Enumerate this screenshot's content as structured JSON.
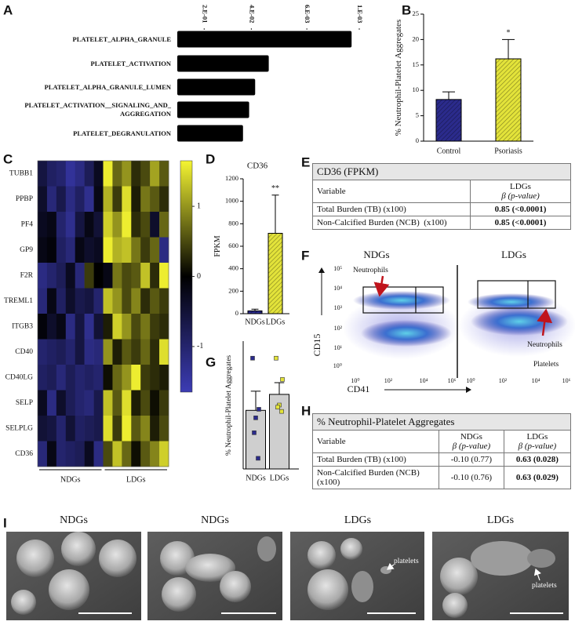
{
  "panel_labels": [
    "A",
    "B",
    "C",
    "D",
    "E",
    "F",
    "G",
    "H",
    "I"
  ],
  "chart_data": [
    {
      "type": "hbar",
      "categories": [
        "PLATELET_ALPHA_GRANULE",
        "PLATELET_ACTIVATION",
        "PLATELET_ALPHA_GRANULE_LUMEN",
        "PLATELET_ACTIVATION__SIGNALING_AND_ AGGREGATION",
        "PLATELET_DEGRANULATION"
      ],
      "values": [
        0.0013,
        0.022,
        0.035,
        0.043,
        0.053
      ],
      "color": "#000000",
      "xscale": "log",
      "xlim": [
        0.5,
        0.001
      ],
      "xticks": [
        {
          "value": 0.2,
          "label": "2.E-01"
        },
        {
          "value": 0.04,
          "label": "4.E-02"
        },
        {
          "value": 0.006,
          "label": "6.E-03"
        },
        {
          "value": 0.001,
          "label": "1.E-03"
        }
      ]
    },
    {
      "type": "bar",
      "ylabel": "% Neutrophil-Platelet Aggregates",
      "categories": [
        "Control",
        "Psoriasis"
      ],
      "values": [
        8.2,
        16.2
      ],
      "errors": [
        1.5,
        3.8
      ],
      "colors": [
        "#2b2b8c",
        "#e3e33a"
      ],
      "hatch": true,
      "ylim": [
        0,
        25
      ],
      "yticks": [
        0,
        5,
        10,
        15,
        20,
        25
      ],
      "annotation": "*"
    },
    {
      "type": "heatmap",
      "rows": [
        "TUBB1",
        "PPBP",
        "PF4",
        "GP9",
        "F2R",
        "TREML1",
        "ITGB3",
        "CD40",
        "CD40LG",
        "SELP",
        "SELPLG",
        "CD36"
      ],
      "groups": [
        "NDGs",
        "LDGs"
      ],
      "values": [
        [
          -0.6,
          -0.9,
          -1.0,
          -1.4,
          -1.2,
          -0.8,
          -0.3,
          1.6,
          0.7,
          1.0,
          0.3,
          0.5,
          1.1,
          0.6
        ],
        [
          -0.4,
          -1.1,
          -0.7,
          -1.2,
          -0.9,
          -1.3,
          -0.2,
          1.2,
          0.4,
          1.5,
          0.2,
          0.8,
          0.6,
          0.3
        ],
        [
          -0.3,
          -0.2,
          -1.0,
          -1.3,
          -0.6,
          -0.2,
          -0.5,
          1.4,
          1.0,
          1.6,
          0.3,
          0.5,
          -0.4,
          0.7
        ],
        [
          -0.2,
          -0.1,
          -0.9,
          -1.1,
          -0.2,
          -0.4,
          -0.3,
          1.6,
          1.2,
          1.3,
          0.8,
          0.4,
          0.7,
          -1.2
        ],
        [
          -1.2,
          -1.0,
          -0.8,
          -0.3,
          -1.1,
          0.4,
          0.0,
          -0.2,
          0.8,
          0.5,
          0.6,
          1.3,
          0.3,
          1.6
        ],
        [
          -1.1,
          -0.2,
          -0.9,
          -0.4,
          -0.7,
          -0.6,
          -1.0,
          1.3,
          1.0,
          0.5,
          0.9,
          0.3,
          0.6,
          0.4
        ],
        [
          -0.1,
          -0.4,
          -0.2,
          -1.2,
          -0.6,
          -1.3,
          -0.5,
          0.2,
          1.4,
          1.0,
          0.5,
          0.8,
          0.4,
          0.3
        ],
        [
          -1.0,
          -0.9,
          -0.8,
          -1.0,
          -0.6,
          -1.2,
          -1.1,
          1.0,
          0.2,
          0.6,
          0.4,
          0.7,
          0.3,
          1.5
        ],
        [
          -0.9,
          -0.8,
          -1.1,
          -0.8,
          -1.0,
          -0.9,
          -1.0,
          0.1,
          0.7,
          1.0,
          1.6,
          0.4,
          0.3,
          0.2
        ],
        [
          -0.3,
          -1.2,
          -0.4,
          -0.8,
          -1.0,
          -1.1,
          -0.7,
          1.3,
          0.6,
          1.5,
          0.2,
          0.5,
          0.1,
          0.4
        ],
        [
          -0.5,
          -0.6,
          -1.0,
          -0.5,
          -0.9,
          -0.8,
          -0.7,
          1.5,
          0.4,
          1.6,
          0.6,
          0.9,
          0.2,
          0.5
        ],
        [
          -1.1,
          -0.2,
          -1.0,
          -0.9,
          -0.8,
          -0.3,
          -1.2,
          0.5,
          1.3,
          0.7,
          0.1,
          0.6,
          0.9,
          1.4
        ]
      ],
      "zlim": [
        -1.65,
        1.65
      ],
      "colorbar_ticks": [
        1,
        0,
        -1
      ]
    },
    {
      "type": "bar",
      "title": "CD36",
      "ylabel": "FPKM",
      "categories": [
        "NDGs",
        "LDGs"
      ],
      "values": [
        25,
        715
      ],
      "errors": [
        15,
        340
      ],
      "colors": [
        "#2b2b8c",
        "#e3e33a"
      ],
      "hatch": true,
      "ylim": [
        0,
        1200
      ],
      "yticks": [
        0,
        200,
        400,
        600,
        800,
        1000,
        1200
      ],
      "annotation": "**"
    },
    {
      "type": "bar",
      "ylabel": "% Neutrophil-Platelet Aggregates",
      "categories": [
        "NDGs",
        "LDGs"
      ],
      "values": [
        27.5,
        35
      ],
      "errors": [
        9,
        5.5
      ],
      "colors": [
        "#cfcfcf",
        "#cfcfcf"
      ],
      "hatch": false,
      "ylim": [
        0,
        60
      ],
      "points": [
        [
          52,
          28,
          24,
          17,
          5
        ],
        [
          52,
          42,
          30,
          29,
          27
        ]
      ],
      "point_colors": [
        "#2b2b8c",
        "#e3e33a"
      ]
    }
  ],
  "table_e": {
    "title": "CD36 (FPKM)",
    "columns": [
      {
        "name": "Variable"
      },
      {
        "name": "LDGs",
        "sub": "β (p-value)"
      }
    ],
    "rows": [
      [
        "Total Burden (TB) (x100)",
        "0.85 (<0.0001)"
      ],
      [
        "Non-Calcified Burden (NCB)  (x100)",
        "0.85 (<0.0001)"
      ]
    ]
  },
  "table_h": {
    "title": "% Neutrophil-Platelet Aggregates",
    "columns": [
      {
        "name": "Variable"
      },
      {
        "name": "NDGs",
        "sub": "β (p-value)"
      },
      {
        "name": "LDGs",
        "sub": "β (p-value)"
      }
    ],
    "rows": [
      [
        "Total Burden (TB) (x100)",
        "-0.10 (0.77)",
        "0.63 (0.028)"
      ],
      [
        "Non-Calcified Burden (NCB) (x100)",
        "-0.10 (0.76)",
        "0.63 (0.029)"
      ]
    ]
  },
  "flow_cytometry": {
    "panels": [
      "NDGs",
      "LDGs"
    ],
    "x_label": "CD41",
    "y_label": "CD15",
    "y_tick_labels": [
      "10⁵",
      "10⁴",
      "10³",
      "10²",
      "10¹",
      "10⁰"
    ],
    "x_tick_labels": [
      "10⁰",
      "10²",
      "10⁴",
      "10⁶"
    ],
    "annotations": [
      "Neutrophils",
      "Neutrophils",
      "Platelets"
    ]
  },
  "micrographs": {
    "titles": [
      "NDGs",
      "NDGs",
      "LDGs",
      "LDGs"
    ],
    "annotations": [
      "platelets",
      "platelets"
    ]
  }
}
